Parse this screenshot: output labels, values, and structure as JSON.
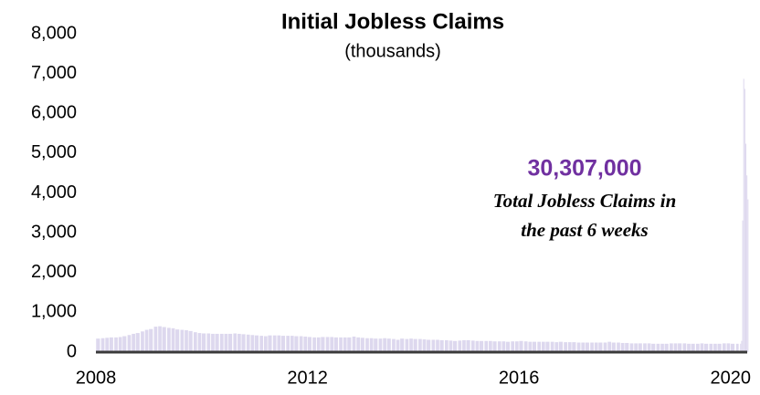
{
  "chart_data": {
    "type": "bar",
    "title": "Initial Jobless Claims",
    "subtitle": "(thousands)",
    "annotations": [
      "30,307,000",
      "Total Jobless Claims in",
      "the past 6 weeks"
    ],
    "color": "#ddd8ee",
    "xlim": [
      2008,
      2020.35
    ],
    "xticks": [
      2008,
      2012,
      2016,
      2020
    ],
    "ylim": [
      0,
      8000
    ],
    "yticks": [
      0,
      {
        "value": 1000,
        "label": "1,000"
      },
      {
        "value": 2000,
        "label": "2,000"
      },
      {
        "value": 3000,
        "label": "3,000"
      },
      {
        "value": 4000,
        "label": "4,000"
      },
      {
        "value": 5000,
        "label": "5,000"
      },
      {
        "value": 6000,
        "label": "6,000"
      },
      {
        "value": 7000,
        "label": "7,000"
      },
      {
        "value": 8000,
        "label": "8,000"
      }
    ],
    "x": [
      2008.04,
      2008.13,
      2008.21,
      2008.29,
      2008.38,
      2008.46,
      2008.54,
      2008.63,
      2008.71,
      2008.79,
      2008.88,
      2008.96,
      2009.04,
      2009.13,
      2009.21,
      2009.29,
      2009.38,
      2009.46,
      2009.54,
      2009.63,
      2009.71,
      2009.79,
      2009.88,
      2009.96,
      2010.04,
      2010.13,
      2010.21,
      2010.29,
      2010.38,
      2010.46,
      2010.54,
      2010.63,
      2010.71,
      2010.79,
      2010.88,
      2010.96,
      2011.04,
      2011.13,
      2011.21,
      2011.29,
      2011.38,
      2011.46,
      2011.54,
      2011.63,
      2011.71,
      2011.79,
      2011.88,
      2011.96,
      2012.04,
      2012.13,
      2012.21,
      2012.29,
      2012.38,
      2012.46,
      2012.54,
      2012.63,
      2012.71,
      2012.79,
      2012.88,
      2012.96,
      2013.04,
      2013.13,
      2013.21,
      2013.29,
      2013.38,
      2013.46,
      2013.54,
      2013.63,
      2013.71,
      2013.79,
      2013.88,
      2013.96,
      2014.04,
      2014.13,
      2014.21,
      2014.29,
      2014.38,
      2014.46,
      2014.54,
      2014.63,
      2014.71,
      2014.79,
      2014.88,
      2014.96,
      2015.04,
      2015.13,
      2015.21,
      2015.29,
      2015.38,
      2015.46,
      2015.54,
      2015.63,
      2015.71,
      2015.79,
      2015.88,
      2015.96,
      2016.04,
      2016.13,
      2016.21,
      2016.29,
      2016.38,
      2016.46,
      2016.54,
      2016.63,
      2016.71,
      2016.79,
      2016.88,
      2016.96,
      2017.04,
      2017.13,
      2017.21,
      2017.29,
      2017.38,
      2017.46,
      2017.54,
      2017.63,
      2017.71,
      2017.79,
      2017.88,
      2017.96,
      2018.04,
      2018.13,
      2018.21,
      2018.29,
      2018.38,
      2018.46,
      2018.54,
      2018.63,
      2018.71,
      2018.79,
      2018.88,
      2018.96,
      2019.04,
      2019.13,
      2019.21,
      2019.29,
      2019.38,
      2019.46,
      2019.54,
      2019.63,
      2019.71,
      2019.79,
      2019.88,
      2019.96,
      2020.04,
      2020.13,
      2020.19,
      2020.21,
      2020.23,
      2020.25,
      2020.27,
      2020.29,
      2020.31,
      2020.33
    ],
    "values": [
      340,
      350,
      360,
      370,
      370,
      380,
      400,
      430,
      460,
      480,
      520,
      560,
      580,
      640,
      650,
      630,
      610,
      600,
      570,
      560,
      550,
      530,
      500,
      480,
      470,
      470,
      460,
      460,
      460,
      460,
      460,
      470,
      460,
      450,
      440,
      430,
      420,
      410,
      400,
      420,
      420,
      420,
      410,
      410,
      410,
      400,
      400,
      390,
      380,
      370,
      370,
      380,
      380,
      380,
      370,
      370,
      370,
      370,
      390,
      370,
      360,
      350,
      350,
      340,
      340,
      350,
      340,
      330,
      310,
      340,
      330,
      340,
      330,
      330,
      320,
      310,
      310,
      310,
      300,
      300,
      290,
      280,
      290,
      300,
      300,
      290,
      280,
      280,
      280,
      280,
      270,
      270,
      270,
      260,
      270,
      270,
      280,
      270,
      260,
      260,
      260,
      260,
      260,
      260,
      250,
      260,
      250,
      250,
      250,
      240,
      240,
      240,
      240,
      240,
      240,
      240,
      260,
      240,
      240,
      230,
      230,
      220,
      220,
      220,
      220,
      220,
      210,
      210,
      210,
      210,
      220,
      220,
      220,
      220,
      210,
      210,
      210,
      220,
      210,
      210,
      210,
      210,
      220,
      220,
      210,
      210,
      211,
      282,
      3307,
      6867,
      6615,
      5237,
      4442,
      3839
    ]
  }
}
